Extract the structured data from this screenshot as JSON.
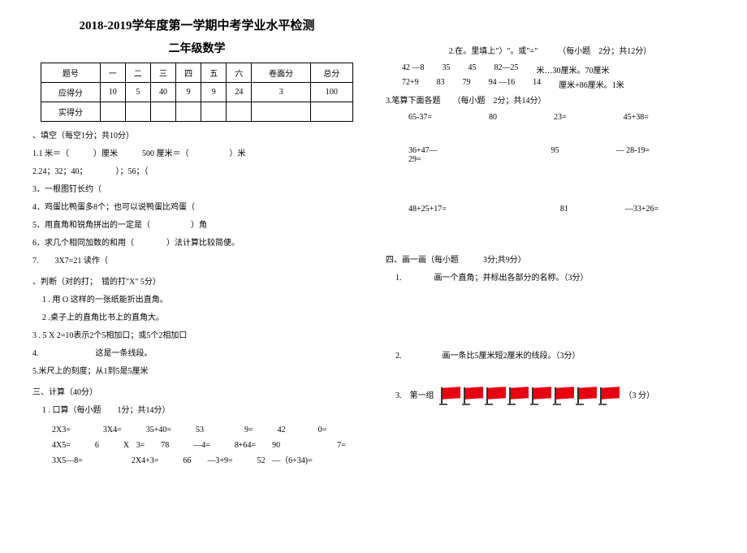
{
  "header": {
    "title1": "2018-2019学年度第一学期中考学业水平检测",
    "title2": "二年级数学"
  },
  "score_table": {
    "headers": [
      "题号",
      "一",
      "二",
      "三",
      "四",
      "五",
      "六",
      "卷面分",
      "总分"
    ],
    "row_should_label": "应得分",
    "row_should": [
      "10",
      "5",
      "40",
      "9",
      "9",
      "24",
      "3",
      "100"
    ],
    "row_actual_label": "实得分"
  },
  "sec1": {
    "title": "、填空（每空1分；共10分）",
    "q1": "1.1 米＝（　　　）厘米　　　500 厘米＝（　　　　　）米",
    "q2": "2.24；32；40；　　　　）；56；（",
    "q3": "3．一根图钉长约（",
    "q4": "4．鸡蛋比鸭蛋多8个；也可以说鸭蛋比鸡蛋（",
    "q5": "5．用直角和锐角拼出的一定是（　　　　　）角",
    "q6": "6．求几个相同加数的和用（　　　　）法计算比较简便。",
    "q7": "7.　　3X7=21 读作（"
  },
  "sec2": {
    "title": "、判断（对的打；　错的打\"X\" 5分）",
    "q1": "1 . 用 O 这样的一张纸能折出直角。",
    "q2": "2 .桌子上的直角比书上的直角大。",
    "q3": "3 . 5 X 2=10表示2个5相加口；或5个2相加口",
    "q4": "4.　　　　　　　这是一条线段。",
    "q5": "5.米尺上的刻度；从1到5是5厘米"
  },
  "sec3": {
    "title": "三、计算（40分）",
    "q1_title": "1 . 口算（每小题　　1分；共14分）",
    "q1_row1": "2X3=　　　　3X4=　　　35+40=　　　53　　　　　9=　　　42　　　　0=",
    "q1_row2": "4X5=　　　6　　　X 3=　　78　　　—4=　　　8+64=　　90　　　　　　　7=",
    "q1_row3": "3X5—8=　　　　　　2X4+3=　　　66　　—3+9=　　　52 —（6+34)=",
    "q2_title": "2.在。里填上\"〉\"。或\"=\"　　　（每小题　2分；共12分）",
    "q2_row1": [
      "42 —8",
      "35",
      "45",
      "82—25",
      "米…30厘米。70厘米"
    ],
    "q2_row2": [
      "72+9",
      "83",
      "79",
      "94 —16",
      "14",
      "厘米+86厘米。1米"
    ],
    "q3_title": "3.笔算下面各题　　（每小题　2分；共14分）",
    "q3_r1": [
      "65-37=",
      "80",
      "23=",
      "45+38="
    ],
    "q3_r2": [
      "36+47—\n29=",
      "",
      "95",
      "— 28-19="
    ],
    "q3_r3": [
      "48+25+17=",
      "",
      "81",
      "—33+26="
    ]
  },
  "sec4": {
    "title": "四、画一画（每小题　　　3分;共9分）",
    "q1": "1.　　　　画一个直角；并标出各部分的名称。（3分）",
    "q2": "2.　　　　　画一条比5厘米短2厘米的线段。（3分）",
    "q3_pre": "3.　第一组",
    "q3_post": "（3 分）"
  },
  "flag_count": 8,
  "colors": {
    "flag_red": "#e60012"
  }
}
